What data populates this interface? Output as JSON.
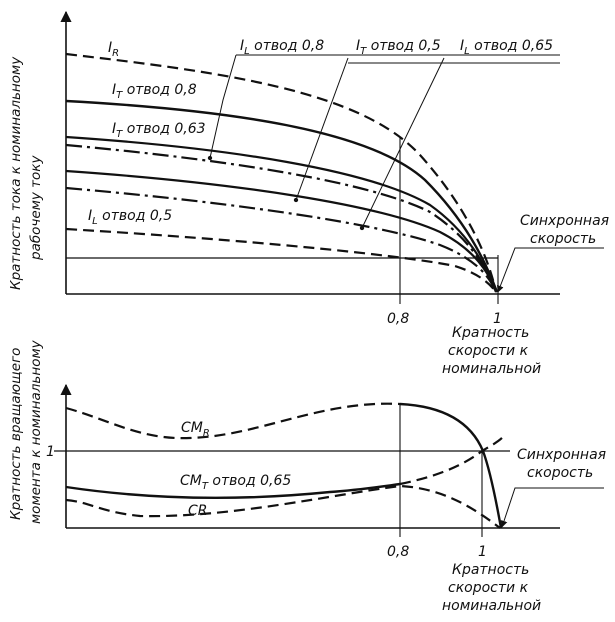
{
  "top_panel": {
    "y_axis_label_line1": "Кратность тока к номинальному",
    "y_axis_label_line2": "рабочему току",
    "x_tick_08": "0,8",
    "x_tick_1": "1",
    "x_axis_label": [
      "Кратность",
      "скорости к",
      "номинальной"
    ],
    "sync_label": [
      "Синхронная",
      "скорость"
    ],
    "labels": {
      "IR_main": "I",
      "IR_sub": "R",
      "IT08_main": "I",
      "IT08_sub": "T",
      "IT08_rest": " отвод 0,8",
      "IT063_main": "I",
      "IT063_sub": "T",
      "IT063_rest": " отвод 0,63",
      "IL05_main": "I",
      "IL05_sub": "L",
      "IL05_rest": " отвод 0,5",
      "IL08_main": "I",
      "IL08_sub": "L",
      "IL08_rest": " отвод 0,8",
      "IT05_main": "I",
      "IT05_sub": "T",
      "IT05_rest": " отвод 0,5",
      "IL065_main": "I",
      "IL065_sub": "L",
      "IL065_rest": " отвод 0,65"
    }
  },
  "bottom_panel": {
    "y_axis_label_line1": "Кратность вращающего",
    "y_axis_label_line2": "момента к номинальному",
    "y_tick_1": "1",
    "x_tick_08": "0,8",
    "x_tick_1": "1",
    "x_axis_label": [
      "Кратность",
      "скорости к",
      "номинальной"
    ],
    "sync_label": [
      "Синхронная",
      "скорость"
    ],
    "labels": {
      "CMR_main": "CM",
      "CMR_sub": "R",
      "CMT_main": "CM",
      "CMT_sub": "T",
      "CMT_rest": " отвод 0,65",
      "CR": "CR"
    }
  },
  "colors": {
    "ink": "#111111",
    "background": "#ffffff"
  }
}
